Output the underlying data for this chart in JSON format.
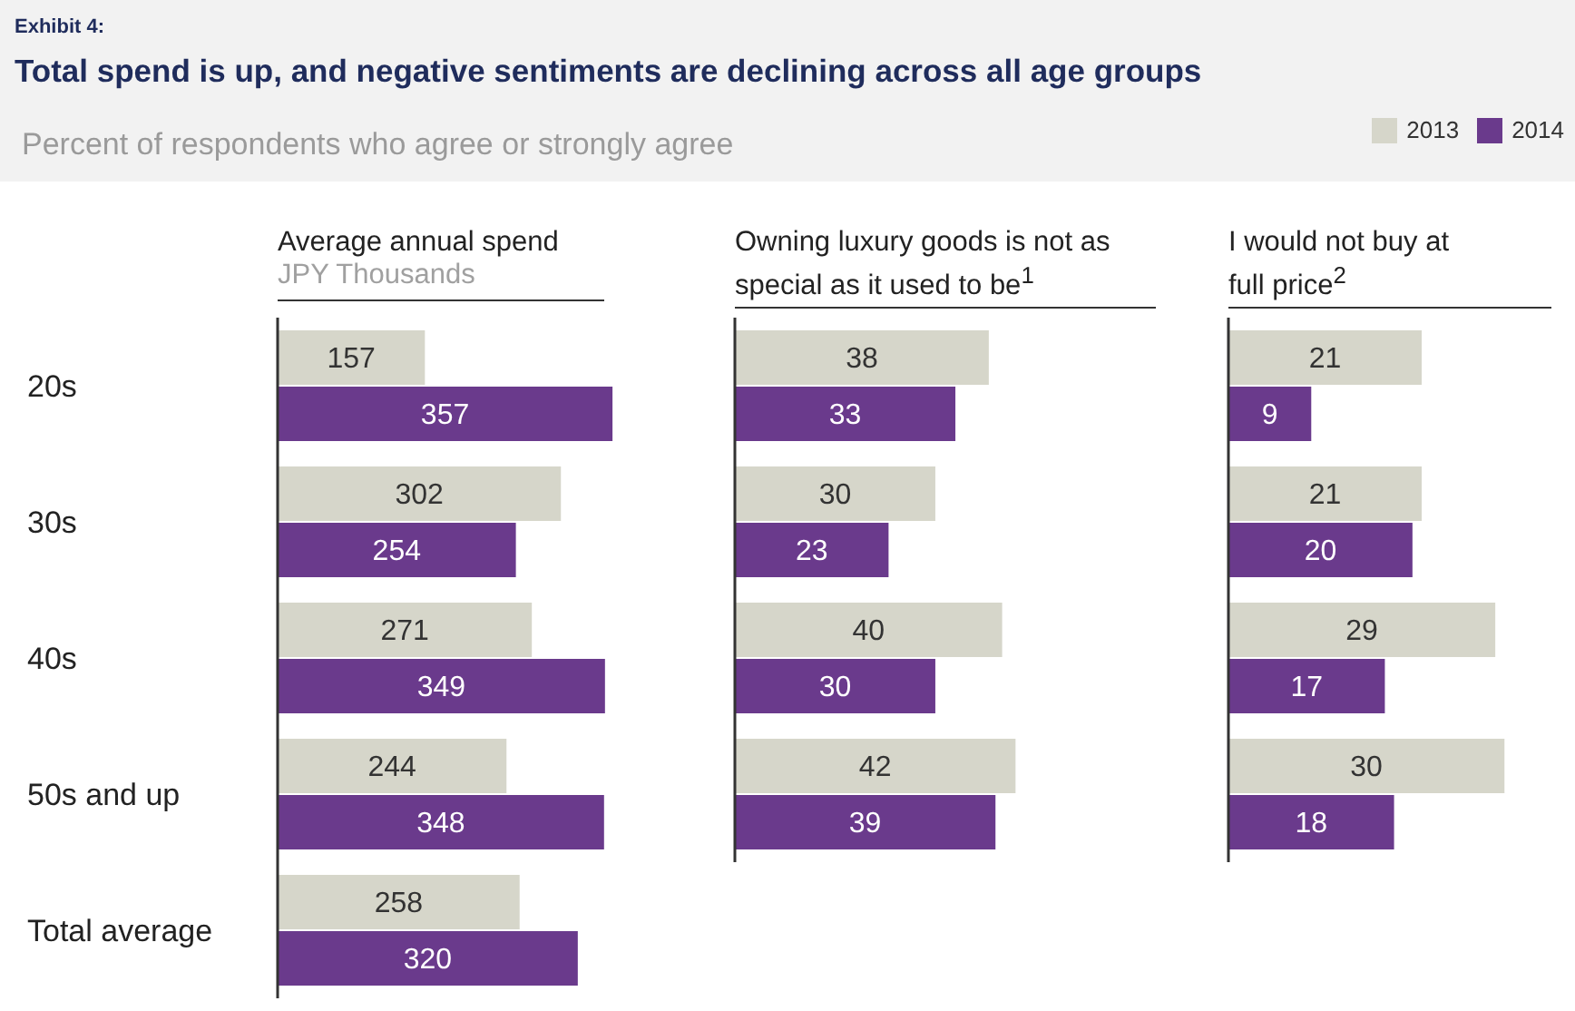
{
  "chart_data": [
    {
      "type": "bar",
      "orientation": "horizontal",
      "title": "Total spend is up, and negative sentiments are declining across all age groups",
      "subtitle": "Percent of respondents who agree or strongly agree",
      "annotations": [
        "Exhibit 4:"
      ],
      "xlabel": "Average annual spend",
      "legend_title": "JPY Thousands",
      "categories": [
        "20s",
        "30s",
        "40s",
        "50s and up",
        "Total average"
      ],
      "series": [
        {
          "name": "2013",
          "color": "#d6d6ca",
          "values": [
            157,
            302,
            271,
            244,
            258
          ]
        },
        {
          "name": "2014",
          "color": "#6a3a8c",
          "values": [
            357,
            254,
            349,
            348,
            320
          ]
        }
      ],
      "data_labels": true,
      "legend": "top right",
      "tick_labels": "y"
    },
    {
      "type": "bar",
      "orientation": "horizontal",
      "xlabel": "Owning luxury goods is not as special as it used to be$^{1}$",
      "categories": [
        null,
        null,
        null,
        null
      ],
      "series": [
        {
          "color": "#d6d6ca",
          "values": [
            38,
            30,
            40,
            42
          ]
        },
        {
          "color": "#6a3a8c",
          "values": [
            33,
            23,
            30,
            39
          ]
        }
      ],
      "data_labels": true,
      "tick_labels": false
    },
    {
      "type": "bar",
      "orientation": "horizontal",
      "xlabel": "I would not buy at full price$^{2}$",
      "categories": [
        null,
        null,
        null,
        null
      ],
      "series": [
        {
          "color": "#d6d6ca",
          "values": [
            21,
            21,
            29,
            30
          ]
        },
        {
          "color": "#6a3a8c",
          "values": [
            9,
            20,
            17,
            18
          ]
        }
      ],
      "data_labels": true,
      "tick_labels": false
    }
  ]
}
